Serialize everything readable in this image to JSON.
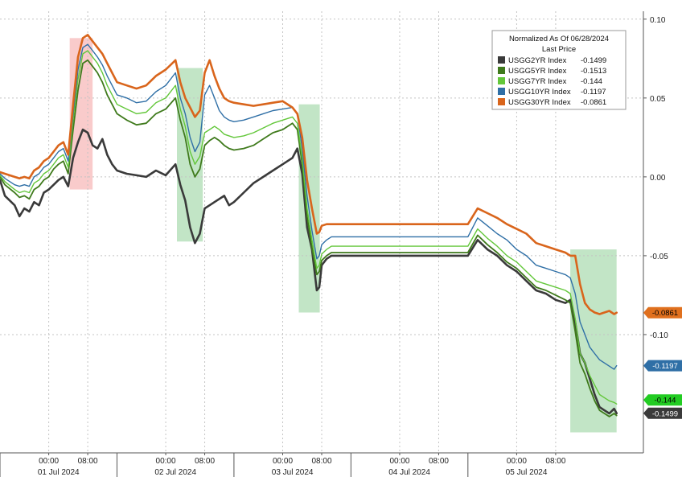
{
  "chart_data": {
    "type": "line",
    "legend": {
      "title": "Normalized As Of 06/28/2024",
      "subtitle": "Last Price",
      "placement": "top-right"
    },
    "y_axis": {
      "side": "right",
      "ylim": [
        -0.175,
        0.105
      ],
      "ticks": [
        {
          "value": 0.1,
          "label": "0.10"
        },
        {
          "value": 0.05,
          "label": "0.05"
        },
        {
          "value": 0.0,
          "label": "0.00"
        },
        {
          "value": -0.05,
          "label": "-0.05"
        },
        {
          "value": -0.1,
          "label": "-0.10"
        }
      ]
    },
    "x_axis": {
      "xlim": [
        -10,
        122
      ],
      "time_ticks": [
        {
          "x": 0,
          "label": "00:00"
        },
        {
          "x": 8,
          "label": "08:00"
        },
        {
          "x": 24,
          "label": "00:00"
        },
        {
          "x": 32,
          "label": "08:00"
        },
        {
          "x": 48,
          "label": "00:00"
        },
        {
          "x": 56,
          "label": "08:00"
        },
        {
          "x": 72,
          "label": "00:00"
        },
        {
          "x": 80,
          "label": "08:00"
        },
        {
          "x": 96,
          "label": "00:00"
        },
        {
          "x": 104,
          "label": "08:00"
        }
      ],
      "date_labels": [
        {
          "x": 2,
          "label": "01 Jul 2024"
        },
        {
          "x": 26,
          "label": "02 Jul 2024"
        },
        {
          "x": 50,
          "label": "03 Jul 2024"
        },
        {
          "x": 74,
          "label": "04 Jul 2024"
        },
        {
          "x": 98,
          "label": "05 Jul 2024"
        }
      ],
      "day_separators": [
        -10,
        14,
        38,
        62,
        86
      ]
    },
    "grid": true,
    "highlight_bands": [
      {
        "x0": 4.3,
        "x1": 9.0,
        "y0": 0.088,
        "y1": -0.008,
        "color": "#f4a0a0"
      },
      {
        "x0": 26.3,
        "x1": 31.6,
        "y0": 0.069,
        "y1": -0.041,
        "color": "#8fcf98"
      },
      {
        "x0": 51.3,
        "x1": 55.6,
        "y0": 0.046,
        "y1": -0.086,
        "color": "#8fcf98"
      },
      {
        "x0": 107.0,
        "x1": 116.5,
        "y0": -0.046,
        "y1": -0.162,
        "color": "#8fcf98"
      }
    ],
    "series": [
      {
        "name": "USGG2YR Index",
        "legend_value": "-0.1499",
        "last_label": "-0.1499",
        "color": "#3a3a3a",
        "label_bg": "#3a3a3a",
        "label_fg": "#ffffff",
        "width": 2.6,
        "x": [
          -10,
          -9,
          -7,
          -6,
          -5,
          -4,
          -3,
          -2,
          -1,
          0,
          1,
          2,
          3,
          4,
          5,
          6,
          7,
          8,
          9,
          10,
          11,
          12,
          13,
          14,
          16,
          18,
          20,
          22,
          24,
          26,
          27,
          28,
          29,
          30,
          31,
          32,
          33,
          34,
          35,
          36,
          37,
          38,
          40,
          42,
          44,
          46,
          48,
          50,
          51,
          52,
          53,
          54,
          55,
          55.5,
          56,
          57,
          58,
          86,
          88,
          90,
          92,
          94,
          96,
          98,
          100,
          102,
          104,
          106,
          107,
          108,
          109,
          110,
          111,
          112,
          113,
          114,
          115,
          116,
          116.5
        ],
        "y": [
          -0.002,
          -0.012,
          -0.018,
          -0.025,
          -0.02,
          -0.022,
          -0.016,
          -0.018,
          -0.01,
          -0.008,
          -0.005,
          -0.002,
          0.0,
          -0.006,
          0.012,
          0.022,
          0.03,
          0.028,
          0.02,
          0.018,
          0.024,
          0.014,
          0.008,
          0.004,
          0.002,
          0.001,
          0.0,
          0.004,
          0.001,
          0.008,
          -0.005,
          -0.015,
          -0.032,
          -0.042,
          -0.036,
          -0.02,
          -0.018,
          -0.016,
          -0.014,
          -0.012,
          -0.018,
          -0.016,
          -0.01,
          -0.004,
          0.0,
          0.004,
          0.008,
          0.012,
          0.018,
          0.002,
          -0.032,
          -0.046,
          -0.072,
          -0.07,
          -0.056,
          -0.052,
          -0.05,
          -0.05,
          -0.04,
          -0.046,
          -0.05,
          -0.056,
          -0.06,
          -0.066,
          -0.072,
          -0.074,
          -0.078,
          -0.08,
          -0.078,
          -0.092,
          -0.112,
          -0.118,
          -0.128,
          -0.138,
          -0.146,
          -0.148,
          -0.15,
          -0.147,
          -0.1499
        ]
      },
      {
        "name": "USGG5YR Index",
        "legend_value": "-0.1513",
        "last_label": "",
        "color": "#3f7a1c",
        "label_bg": "#3f7a1c",
        "label_fg": "#ffffff",
        "width": 1.8,
        "x": [
          -10,
          -9,
          -7,
          -6,
          -5,
          -4,
          -3,
          -2,
          -1,
          0,
          1,
          2,
          3,
          4,
          5,
          6,
          7,
          8,
          9,
          10,
          11,
          12,
          13,
          14,
          16,
          18,
          20,
          22,
          24,
          26,
          27,
          28,
          29,
          30,
          31,
          32,
          33,
          34,
          35,
          36,
          37,
          38,
          40,
          42,
          44,
          46,
          48,
          50,
          51,
          52,
          53,
          54,
          55,
          55.5,
          56,
          57,
          58,
          86,
          88,
          90,
          92,
          94,
          96,
          98,
          100,
          102,
          104,
          106,
          107,
          108,
          109,
          110,
          111,
          112,
          113,
          114,
          115,
          116,
          116.5
        ],
        "y": [
          0.0,
          -0.005,
          -0.01,
          -0.013,
          -0.012,
          -0.014,
          -0.008,
          -0.006,
          -0.002,
          0.0,
          0.005,
          0.008,
          0.01,
          0.002,
          0.03,
          0.055,
          0.072,
          0.074,
          0.07,
          0.066,
          0.06,
          0.052,
          0.046,
          0.04,
          0.036,
          0.033,
          0.034,
          0.04,
          0.043,
          0.05,
          0.036,
          0.025,
          0.008,
          0.0,
          0.005,
          0.02,
          0.023,
          0.025,
          0.023,
          0.02,
          0.018,
          0.017,
          0.018,
          0.02,
          0.024,
          0.028,
          0.03,
          0.034,
          0.03,
          0.008,
          -0.025,
          -0.045,
          -0.062,
          -0.06,
          -0.053,
          -0.05,
          -0.048,
          -0.048,
          -0.037,
          -0.043,
          -0.048,
          -0.054,
          -0.058,
          -0.064,
          -0.07,
          -0.072,
          -0.075,
          -0.078,
          -0.08,
          -0.098,
          -0.118,
          -0.125,
          -0.134,
          -0.142,
          -0.148,
          -0.15,
          -0.152,
          -0.15,
          -0.1513
        ]
      },
      {
        "name": "USGG7YR Index",
        "legend_value": "-0.144",
        "last_label": "-0.144",
        "color": "#63c73a",
        "label_bg": "#22cc22",
        "label_fg": "#000000",
        "width": 1.4,
        "x": [
          -10,
          -9,
          -7,
          -6,
          -5,
          -4,
          -3,
          -2,
          -1,
          0,
          1,
          2,
          3,
          4,
          5,
          6,
          7,
          8,
          9,
          10,
          11,
          12,
          13,
          14,
          16,
          18,
          20,
          22,
          24,
          26,
          27,
          28,
          29,
          30,
          31,
          32,
          33,
          34,
          35,
          36,
          37,
          38,
          40,
          42,
          44,
          46,
          48,
          50,
          51,
          52,
          53,
          54,
          55,
          55.5,
          56,
          57,
          58,
          86,
          88,
          90,
          92,
          94,
          96,
          98,
          100,
          102,
          104,
          106,
          107,
          108,
          109,
          110,
          111,
          112,
          113,
          114,
          115,
          116,
          116.5
        ],
        "y": [
          0.001,
          -0.003,
          -0.008,
          -0.01,
          -0.009,
          -0.01,
          -0.004,
          -0.002,
          0.002,
          0.004,
          0.008,
          0.012,
          0.014,
          0.006,
          0.036,
          0.062,
          0.078,
          0.08,
          0.076,
          0.072,
          0.066,
          0.058,
          0.052,
          0.046,
          0.043,
          0.04,
          0.041,
          0.047,
          0.05,
          0.058,
          0.043,
          0.032,
          0.016,
          0.008,
          0.013,
          0.028,
          0.03,
          0.032,
          0.03,
          0.027,
          0.026,
          0.025,
          0.026,
          0.028,
          0.031,
          0.034,
          0.036,
          0.038,
          0.034,
          0.012,
          -0.02,
          -0.04,
          -0.058,
          -0.056,
          -0.049,
          -0.046,
          -0.044,
          -0.044,
          -0.033,
          -0.039,
          -0.044,
          -0.05,
          -0.054,
          -0.06,
          -0.066,
          -0.068,
          -0.07,
          -0.072,
          -0.074,
          -0.09,
          -0.112,
          -0.118,
          -0.126,
          -0.132,
          -0.138,
          -0.14,
          -0.142,
          -0.143,
          -0.144
        ]
      },
      {
        "name": "USGG10YR Index",
        "legend_value": "-0.1197",
        "last_label": "-0.1197",
        "color": "#2f6fa6",
        "label_bg": "#2f6fa6",
        "label_fg": "#ffffff",
        "width": 1.4,
        "x": [
          -10,
          -9,
          -7,
          -6,
          -5,
          -4,
          -3,
          -2,
          -1,
          0,
          1,
          2,
          3,
          4,
          5,
          6,
          7,
          8,
          9,
          10,
          11,
          12,
          13,
          14,
          16,
          18,
          20,
          22,
          24,
          26,
          27,
          28,
          29,
          30,
          31,
          32,
          33,
          34,
          35,
          36,
          37,
          38,
          40,
          42,
          44,
          46,
          48,
          50,
          51,
          52,
          53,
          54,
          55,
          55.5,
          56,
          57,
          58,
          86,
          88,
          90,
          92,
          94,
          96,
          98,
          100,
          102,
          104,
          106,
          107,
          108,
          109,
          110,
          111,
          112,
          113,
          114,
          115,
          116,
          116.5
        ],
        "y": [
          0.002,
          -0.001,
          -0.005,
          -0.006,
          -0.005,
          -0.006,
          0.0,
          0.002,
          0.006,
          0.008,
          0.012,
          0.016,
          0.018,
          0.01,
          0.04,
          0.068,
          0.082,
          0.084,
          0.08,
          0.076,
          0.071,
          0.064,
          0.058,
          0.052,
          0.05,
          0.047,
          0.048,
          0.054,
          0.058,
          0.066,
          0.05,
          0.04,
          0.025,
          0.016,
          0.022,
          0.052,
          0.058,
          0.05,
          0.042,
          0.038,
          0.036,
          0.035,
          0.036,
          0.038,
          0.04,
          0.042,
          0.043,
          0.044,
          0.04,
          0.018,
          -0.012,
          -0.034,
          -0.052,
          -0.05,
          -0.043,
          -0.04,
          -0.038,
          -0.038,
          -0.026,
          -0.031,
          -0.036,
          -0.04,
          -0.046,
          -0.05,
          -0.056,
          -0.058,
          -0.06,
          -0.062,
          -0.064,
          -0.074,
          -0.092,
          -0.1,
          -0.108,
          -0.112,
          -0.116,
          -0.118,
          -0.12,
          -0.122,
          -0.1197
        ]
      },
      {
        "name": "USGG30YR Index",
        "legend_value": "-0.0861",
        "last_label": "-0.0861",
        "color": "#d9651c",
        "label_bg": "#e0701e",
        "label_fg": "#000000",
        "width": 2.6,
        "x": [
          -10,
          -9,
          -7,
          -6,
          -5,
          -4,
          -3,
          -2,
          -1,
          0,
          1,
          2,
          3,
          4,
          5,
          6,
          7,
          8,
          9,
          10,
          11,
          12,
          13,
          14,
          16,
          18,
          20,
          22,
          24,
          26,
          27,
          28,
          29,
          30,
          31,
          32,
          33,
          34,
          35,
          36,
          37,
          38,
          40,
          42,
          44,
          46,
          48,
          50,
          51,
          52,
          53,
          54,
          55,
          55.5,
          56,
          57,
          58,
          86,
          88,
          90,
          92,
          94,
          96,
          98,
          100,
          102,
          104,
          106,
          107,
          108,
          109,
          110,
          111,
          112,
          113,
          114,
          115,
          116,
          116.5
        ],
        "y": [
          0.003,
          0.002,
          0.0,
          -0.001,
          0.0,
          -0.001,
          0.004,
          0.006,
          0.01,
          0.012,
          0.016,
          0.02,
          0.022,
          0.014,
          0.046,
          0.076,
          0.088,
          0.09,
          0.086,
          0.082,
          0.078,
          0.072,
          0.066,
          0.06,
          0.058,
          0.056,
          0.058,
          0.064,
          0.068,
          0.074,
          0.06,
          0.05,
          0.044,
          0.038,
          0.042,
          0.066,
          0.074,
          0.064,
          0.056,
          0.05,
          0.048,
          0.047,
          0.046,
          0.045,
          0.046,
          0.047,
          0.048,
          0.044,
          0.04,
          0.025,
          -0.002,
          -0.02,
          -0.036,
          -0.035,
          -0.031,
          -0.03,
          -0.03,
          -0.03,
          -0.02,
          -0.023,
          -0.026,
          -0.03,
          -0.033,
          -0.036,
          -0.042,
          -0.044,
          -0.046,
          -0.048,
          -0.05,
          -0.05,
          -0.068,
          -0.08,
          -0.084,
          -0.086,
          -0.087,
          -0.086,
          -0.085,
          -0.087,
          -0.0861
        ]
      }
    ]
  }
}
